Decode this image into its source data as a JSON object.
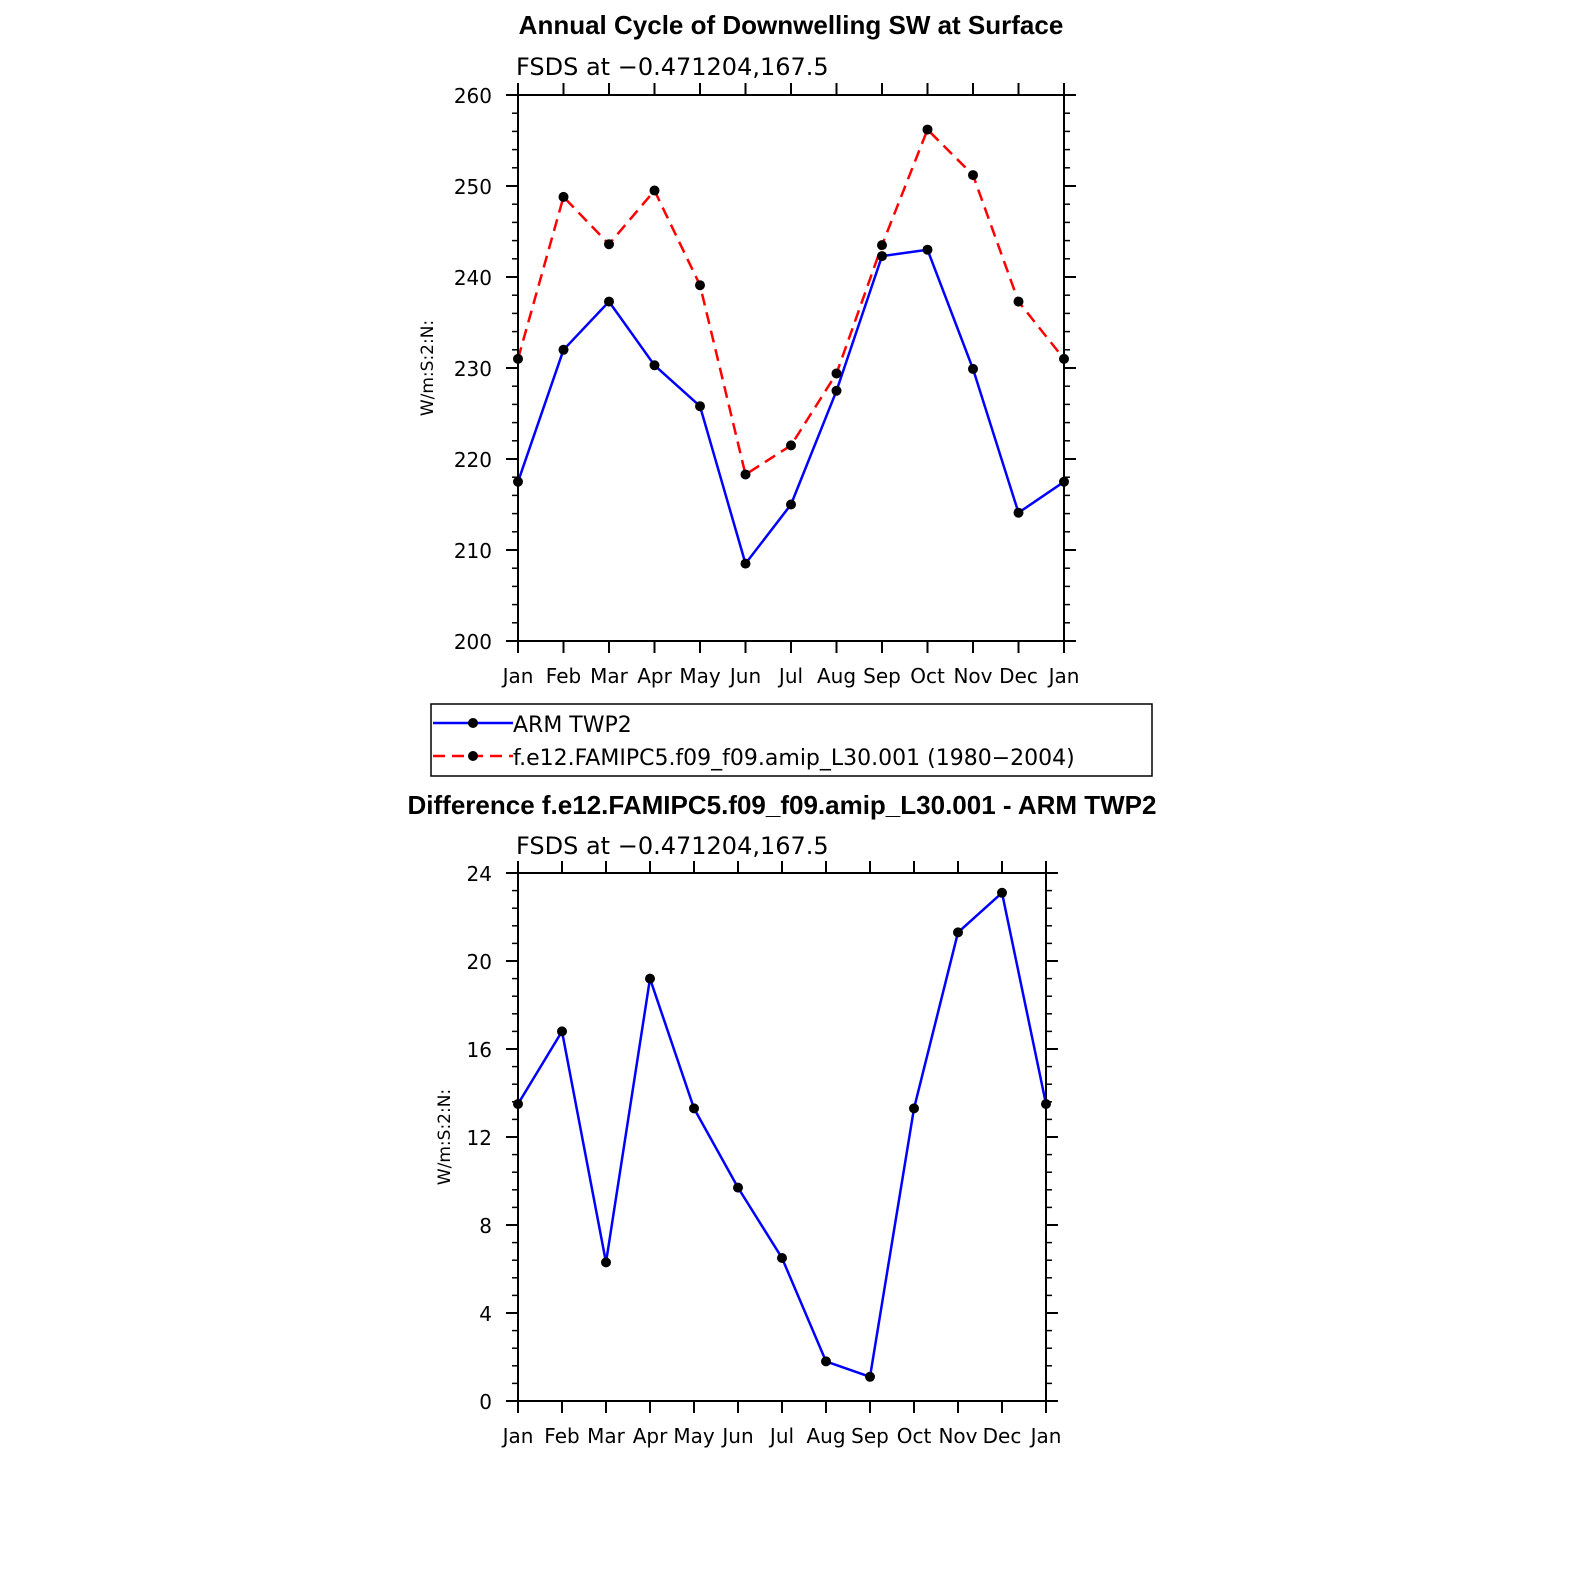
{
  "chart_data": [
    {
      "type": "line",
      "title": "Annual Cycle of Downwelling SW at Surface",
      "subtitle": "FSDS at −0.471204,167.5",
      "ylabel": "W/m:S:2:N:",
      "xlabel": "",
      "categories": [
        "Jan",
        "Feb",
        "Mar",
        "Apr",
        "May",
        "Jun",
        "Jul",
        "Aug",
        "Sep",
        "Oct",
        "Nov",
        "Dec",
        "Jan"
      ],
      "ylim": [
        200,
        260
      ],
      "yticks": [
        200,
        210,
        220,
        230,
        240,
        250,
        260
      ],
      "y_tick_labels": [
        "200",
        "210",
        "220",
        "230",
        "240",
        "250",
        "260"
      ],
      "series": [
        {
          "name": "ARM TWP2",
          "color": "#0000ff",
          "dash": "solid",
          "values": [
            217.5,
            232.0,
            237.3,
            230.3,
            225.8,
            208.5,
            215.0,
            227.5,
            242.3,
            243.0,
            229.9,
            214.1,
            217.5
          ]
        },
        {
          "name": "f.e12.FAMIPC5.f09_f09.amip_L30.001 (1980−2004)",
          "color": "#ff0000",
          "dash": "dashed",
          "values": [
            231.0,
            248.8,
            243.6,
            249.5,
            239.1,
            218.3,
            221.5,
            229.4,
            243.5,
            256.2,
            251.2,
            237.3,
            231.0
          ]
        }
      ],
      "legend": {
        "placement": "bottom",
        "entries": [
          "ARM TWP2",
          "f.e12.FAMIPC5.f09_f09.amip_L30.001 (1980−2004)"
        ]
      },
      "grid": false
    },
    {
      "type": "line",
      "title": "Difference f.e12.FAMIPC5.f09_f09.amip_L30.001 - ARM TWP2",
      "subtitle": "FSDS at −0.471204,167.5",
      "ylabel": "W/m:S:2:N:",
      "xlabel": "",
      "categories": [
        "Jan",
        "Feb",
        "Mar",
        "Apr",
        "May",
        "Jun",
        "Jul",
        "Aug",
        "Sep",
        "Oct",
        "Nov",
        "Dec",
        "Jan"
      ],
      "ylim": [
        0,
        24
      ],
      "yticks": [
        0,
        4,
        8,
        12,
        16,
        20,
        24
      ],
      "y_tick_labels": [
        "0",
        "4",
        "8",
        "12",
        "16",
        "20",
        "24"
      ],
      "series": [
        {
          "color": "#0000ff",
          "dash": "solid",
          "values": [
            13.5,
            16.8,
            6.3,
            19.2,
            13.3,
            9.7,
            6.5,
            1.8,
            1.1,
            13.3,
            21.3,
            23.1,
            13.5
          ]
        }
      ],
      "grid": false
    }
  ]
}
